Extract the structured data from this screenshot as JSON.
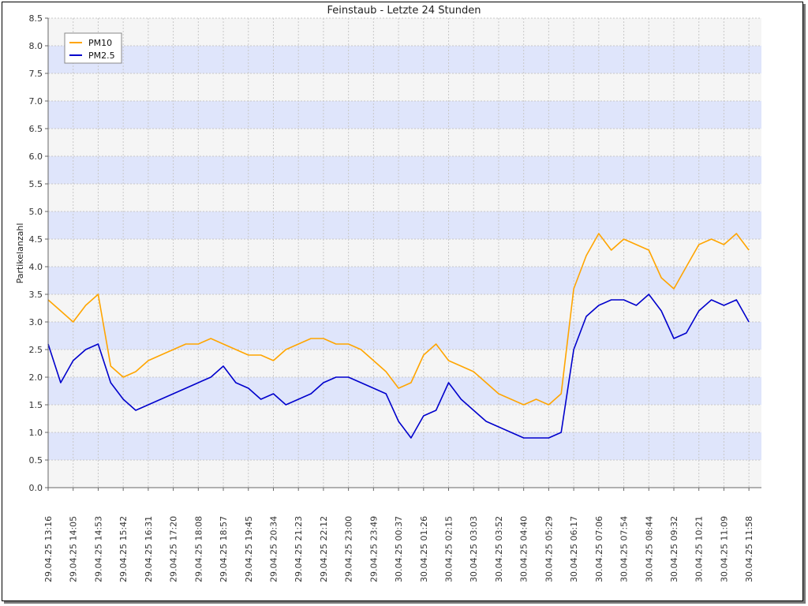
{
  "chart_data": {
    "type": "line",
    "title": "Feinstaub  - Letzte 24 Stunden",
    "xlabel": "",
    "ylabel": "Partikelanzahl",
    "ylim": [
      0,
      8.5
    ],
    "y_ticks": [
      "0.0",
      "0.5",
      "1.0",
      "1.5",
      "2.0",
      "2.5",
      "3.0",
      "3.5",
      "4.0",
      "4.5",
      "5.0",
      "5.5",
      "6.0",
      "6.5",
      "7.0",
      "7.5",
      "8.0",
      "8.5"
    ],
    "x_ticks": [
      "29.04.25 13:16",
      "29.04.25 14:05",
      "29.04.25 14:53",
      "29.04.25 15:42",
      "29.04.25 16:31",
      "29.04.25 17:20",
      "29.04.25 18:08",
      "29.04.25 18:57",
      "29.04.25 19:45",
      "29.04.25 20:34",
      "29.04.25 21:23",
      "29.04.25 22:12",
      "29.04.25 23:00",
      "29.04.25 23:49",
      "30.04.25 00:37",
      "30.04.25 01:26",
      "30.04.25 02:15",
      "30.04.25 03:03",
      "30.04.25 03:52",
      "30.04.25 04:40",
      "30.04.25 05:29",
      "30.04.25 06:17",
      "30.04.25 07:06",
      "30.04.25 07:54",
      "30.04.25 08:44",
      "30.04.25 09:32",
      "30.04.25 10:21",
      "30.04.25 11:09",
      "30.04.25 11:58"
    ],
    "grid": true,
    "legend_position": "top-left",
    "series": [
      {
        "name": "PM10",
        "color": "#ffa500",
        "x": [
          "29.04.25 13:16",
          "29.04.25 13:41",
          "29.04.25 14:05",
          "29.04.25 14:29",
          "29.04.25 14:53",
          "29.04.25 15:18",
          "29.04.25 15:42",
          "29.04.25 16:07",
          "29.04.25 16:31",
          "29.04.25 16:55",
          "29.04.25 17:20",
          "29.04.25 17:44",
          "29.04.25 18:08",
          "29.04.25 18:32",
          "29.04.25 18:57",
          "29.04.25 19:21",
          "29.04.25 19:45",
          "29.04.25 20:10",
          "29.04.25 20:34",
          "29.04.25 20:59",
          "29.04.25 21:23",
          "29.04.25 21:47",
          "29.04.25 22:12",
          "29.04.25 22:36",
          "29.04.25 23:00",
          "29.04.25 23:25",
          "29.04.25 23:49",
          "30.04.25 00:13",
          "30.04.25 00:37",
          "30.04.25 01:02",
          "30.04.25 01:26",
          "30.04.25 01:50",
          "30.04.25 02:15",
          "30.04.25 02:39",
          "30.04.25 03:03",
          "30.04.25 03:28",
          "30.04.25 03:52",
          "30.04.25 04:16",
          "30.04.25 04:40",
          "30.04.25 05:05",
          "30.04.25 05:29",
          "30.04.25 05:53",
          "30.04.25 06:17",
          "30.04.25 06:42",
          "30.04.25 07:06",
          "30.04.25 07:30",
          "30.04.25 07:54",
          "30.04.25 08:19",
          "30.04.25 08:44",
          "30.04.25 09:08",
          "30.04.25 09:32",
          "30.04.25 09:57",
          "30.04.25 10:21",
          "30.04.25 10:45",
          "30.04.25 11:09",
          "30.04.25 11:34",
          "30.04.25 11:58"
        ],
        "values": [
          3.4,
          3.2,
          3.0,
          3.3,
          3.5,
          2.2,
          2.0,
          2.1,
          2.3,
          2.4,
          2.5,
          2.6,
          2.6,
          2.7,
          2.6,
          2.5,
          2.4,
          2.4,
          2.3,
          2.5,
          2.6,
          2.7,
          2.7,
          2.6,
          2.6,
          2.5,
          2.3,
          2.1,
          1.8,
          1.9,
          2.4,
          2.6,
          2.3,
          2.2,
          2.1,
          1.9,
          1.7,
          1.6,
          1.5,
          1.6,
          1.5,
          1.7,
          3.6,
          4.2,
          4.6,
          4.3,
          4.5,
          4.4,
          4.3,
          3.8,
          3.6,
          4.0,
          4.4,
          4.5,
          4.4,
          4.6,
          4.3
        ]
      },
      {
        "name": "PM2.5",
        "color": "#0000cc",
        "x": [
          "29.04.25 13:16",
          "29.04.25 13:41",
          "29.04.25 14:05",
          "29.04.25 14:29",
          "29.04.25 14:53",
          "29.04.25 15:18",
          "29.04.25 15:42",
          "29.04.25 16:07",
          "29.04.25 16:31",
          "29.04.25 16:55",
          "29.04.25 17:20",
          "29.04.25 17:44",
          "29.04.25 18:08",
          "29.04.25 18:32",
          "29.04.25 18:57",
          "29.04.25 19:21",
          "29.04.25 19:45",
          "29.04.25 20:10",
          "29.04.25 20:34",
          "29.04.25 20:59",
          "29.04.25 21:23",
          "29.04.25 21:47",
          "29.04.25 22:12",
          "29.04.25 22:36",
          "29.04.25 23:00",
          "29.04.25 23:25",
          "29.04.25 23:49",
          "30.04.25 00:13",
          "30.04.25 00:37",
          "30.04.25 01:02",
          "30.04.25 01:26",
          "30.04.25 01:50",
          "30.04.25 02:15",
          "30.04.25 02:39",
          "30.04.25 03:03",
          "30.04.25 03:28",
          "30.04.25 03:52",
          "30.04.25 04:16",
          "30.04.25 04:40",
          "30.04.25 05:05",
          "30.04.25 05:29",
          "30.04.25 05:53",
          "30.04.25 06:17",
          "30.04.25 06:42",
          "30.04.25 07:06",
          "30.04.25 07:30",
          "30.04.25 07:54",
          "30.04.25 08:19",
          "30.04.25 08:44",
          "30.04.25 09:08",
          "30.04.25 09:32",
          "30.04.25 09:57",
          "30.04.25 10:21",
          "30.04.25 10:45",
          "30.04.25 11:09",
          "30.04.25 11:34",
          "30.04.25 11:58"
        ],
        "values": [
          2.6,
          1.9,
          2.3,
          2.5,
          2.6,
          1.9,
          1.6,
          1.4,
          1.5,
          1.6,
          1.7,
          1.8,
          1.9,
          2.0,
          2.2,
          1.9,
          1.8,
          1.6,
          1.7,
          1.5,
          1.6,
          1.7,
          1.9,
          2.0,
          2.0,
          1.9,
          1.8,
          1.7,
          1.2,
          0.9,
          1.3,
          1.4,
          1.9,
          1.6,
          1.4,
          1.2,
          1.1,
          1.0,
          0.9,
          0.9,
          0.9,
          1.0,
          2.5,
          3.1,
          3.3,
          3.4,
          3.4,
          3.3,
          3.5,
          3.2,
          2.7,
          2.8,
          3.2,
          3.4,
          3.3,
          3.4,
          3.0
        ]
      }
    ]
  }
}
